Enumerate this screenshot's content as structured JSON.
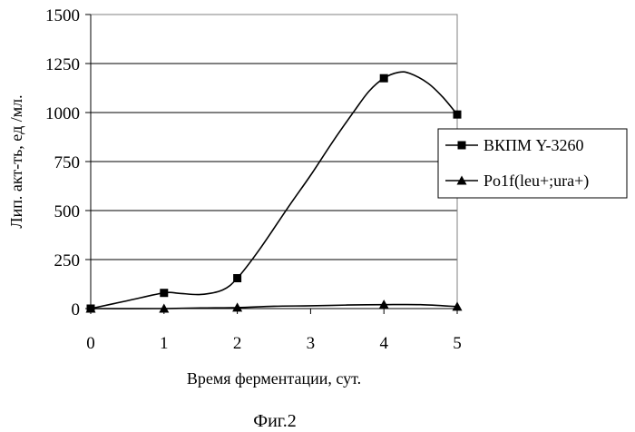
{
  "chart_data": {
    "type": "line",
    "xlabel": "Время ферментации, сут.",
    "ylabel": "Лип. акт-ть, ед /мл.",
    "xlim": [
      0,
      5
    ],
    "ylim": [
      0,
      1500
    ],
    "x_ticks": [
      "0",
      "1",
      "2",
      "3",
      "4",
      "5"
    ],
    "y_ticks": [
      "0",
      "250",
      "500",
      "750",
      "1000",
      "1250",
      "1500"
    ],
    "grid": "horizontal",
    "legend_position": "right",
    "smooth": true,
    "series": [
      {
        "name": "ВКПМ Y-3260",
        "marker": "square",
        "x": [
          0,
          1,
          2,
          4,
          5
        ],
        "y": [
          0,
          80,
          155,
          1175,
          990
        ],
        "curve_x": [
          0,
          0.5,
          1,
          1.2,
          1.5,
          1.8,
          2,
          2.3,
          2.7,
          3,
          3.3,
          3.6,
          3.8,
          4,
          4.2,
          4.35,
          4.6,
          4.8,
          5
        ],
        "curve_y": [
          0,
          40,
          80,
          78,
          72,
          95,
          155,
          300,
          520,
          680,
          850,
          1010,
          1110,
          1175,
          1205,
          1200,
          1150,
          1080,
          990
        ]
      },
      {
        "name": "Po1f(leu+;ura+)",
        "marker": "triangle",
        "x": [
          0,
          1,
          2,
          4,
          5
        ],
        "y": [
          0,
          0,
          5,
          20,
          10
        ],
        "curve_x": [
          0,
          1,
          1.5,
          2,
          2.5,
          3,
          3.5,
          4,
          4.5,
          5
        ],
        "curve_y": [
          0,
          0,
          3,
          5,
          12,
          14,
          18,
          20,
          20,
          10
        ]
      }
    ]
  },
  "caption": "Фиг.2",
  "colors": {
    "line": "#000000",
    "grid": "#000000",
    "frame": "#808080"
  }
}
